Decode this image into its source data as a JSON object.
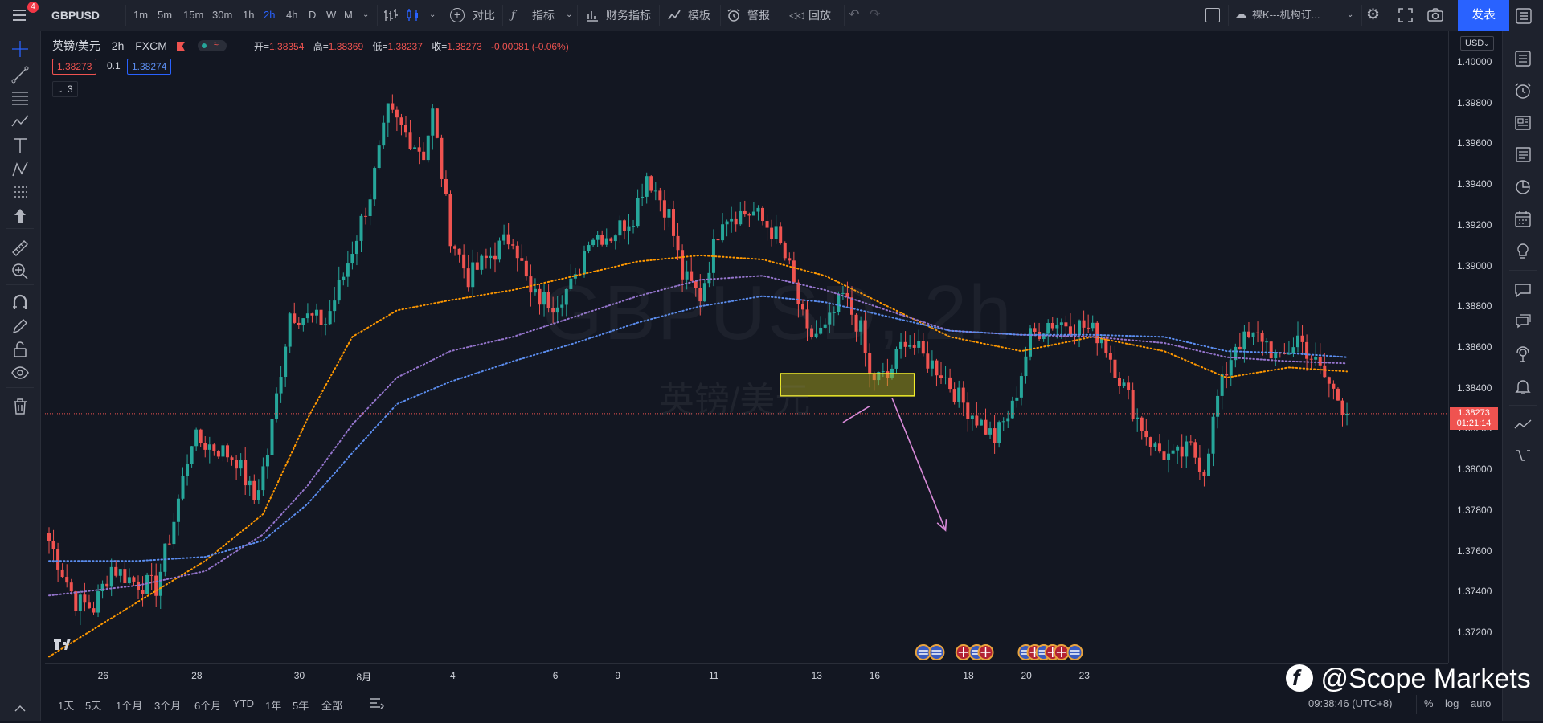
{
  "topbar": {
    "symbol": "GBPUSD",
    "intervals": [
      "1m",
      "5m",
      "15m",
      "30m",
      "1h",
      "2h",
      "4h",
      "D",
      "W",
      "M"
    ],
    "active_interval": "2h",
    "compare_label": "对比",
    "indicators_label": "指标",
    "financials_label": "财务指标",
    "templates_label": "模板",
    "alerts_label": "警报",
    "replay_label": "回放",
    "layout_name": "裸K---机构订...",
    "publish_label": "发表",
    "notification_count": "4"
  },
  "legend": {
    "pair": "英镑/美元",
    "interval": "2h",
    "source": "FXCM",
    "open_label": "开=",
    "open": "1.38354",
    "high_label": "高=",
    "high": "1.38369",
    "low_label": "低=",
    "low": "1.38237",
    "close_label": "收=",
    "close": "1.38273",
    "change": "-0.00081 (-0.06%)",
    "bid": "1.38273",
    "spread": "0.1",
    "ask": "1.38274",
    "collapsed_indicators": "3"
  },
  "watermark": {
    "line1": "GBPUSD, 2h",
    "line2": "英镑/美元"
  },
  "price_axis": {
    "currency": "USD",
    "ticks": [
      "1.40000",
      "1.39800",
      "1.39600",
      "1.39400",
      "1.39200",
      "1.39000",
      "1.38800",
      "1.38600",
      "1.38400",
      "1.38200",
      "1.38000",
      "1.37800",
      "1.37600",
      "1.37400",
      "1.37200"
    ],
    "current_price": "1.38273",
    "countdown": "01:21:14"
  },
  "time_axis": {
    "labels": [
      "26",
      "28",
      "30",
      "8月",
      "4",
      "6",
      "9",
      "11",
      "13",
      "16",
      "18",
      "20",
      "23"
    ]
  },
  "bottombar": {
    "ranges": [
      "1天",
      "5天",
      "1个月",
      "3个月",
      "6个月",
      "YTD",
      "1年",
      "5年",
      "全部"
    ],
    "clock": "09:38:46 (UTC+8)",
    "percent_label": "%",
    "log_label": "log",
    "auto_label": "auto"
  },
  "brand": {
    "text": "@Scope Markets"
  },
  "colors": {
    "up": "#26a69a",
    "down": "#ef5350",
    "orange_ma": "#ff9800",
    "purple_ma": "#9575cd",
    "blue_ma": "#5b8def",
    "zone": "#b5b21a",
    "arrow": "#d88ad8",
    "accent": "#2962ff"
  },
  "chart_data": {
    "type": "candlestick",
    "symbol": "GBPUSD",
    "interval": "2h",
    "y_range": [
      1.3705,
      1.4015
    ],
    "price_line": 1.38273,
    "zone": {
      "price_top": 1.3847,
      "price_bottom": 1.3836,
      "start_index": 164,
      "end_index": 194
    },
    "arrow": {
      "from_index": 189,
      "from_price": 1.3835,
      "to_index": 201,
      "to_price": 1.377
    },
    "small_tick": {
      "from_index": 178,
      "from_price": 1.3823,
      "to_index": 184,
      "to_price": 1.3831
    },
    "key_points": [
      [
        0,
        1.3765
      ],
      [
        6,
        1.3735
      ],
      [
        10,
        1.3732
      ],
      [
        14,
        1.3752
      ],
      [
        19,
        1.3745
      ],
      [
        24,
        1.3742
      ],
      [
        28,
        1.3775
      ],
      [
        32,
        1.3815
      ],
      [
        38,
        1.381
      ],
      [
        42,
        1.3805
      ],
      [
        46,
        1.3785
      ],
      [
        49,
        1.3808
      ],
      [
        54,
        1.3877
      ],
      [
        62,
        1.3872
      ],
      [
        66,
        1.3895
      ],
      [
        72,
        1.3935
      ],
      [
        76,
        1.3975
      ],
      [
        84,
        1.3955
      ],
      [
        86,
        1.3975
      ],
      [
        90,
        1.3915
      ],
      [
        94,
        1.3894
      ],
      [
        99,
        1.3905
      ],
      [
        104,
        1.3915
      ],
      [
        108,
        1.3885
      ],
      [
        113,
        1.3882
      ],
      [
        118,
        1.3892
      ],
      [
        121,
        1.3915
      ],
      [
        126,
        1.3915
      ],
      [
        131,
        1.3925
      ],
      [
        134,
        1.3945
      ],
      [
        139,
        1.3925
      ],
      [
        142,
        1.3895
      ],
      [
        146,
        1.3885
      ],
      [
        151,
        1.3925
      ],
      [
        158,
        1.3926
      ],
      [
        163,
        1.3915
      ],
      [
        166,
        1.3898
      ],
      [
        170,
        1.3865
      ],
      [
        174,
        1.3868
      ],
      [
        178,
        1.3885
      ],
      [
        182,
        1.3868
      ],
      [
        184,
        1.3845
      ],
      [
        188,
        1.3845
      ],
      [
        192,
        1.3865
      ],
      [
        196,
        1.3855
      ],
      [
        200,
        1.3848
      ],
      [
        204,
        1.3835
      ],
      [
        208,
        1.3825
      ],
      [
        212,
        1.3815
      ],
      [
        216,
        1.383
      ],
      [
        220,
        1.3865
      ],
      [
        224,
        1.3872
      ],
      [
        228,
        1.3872
      ],
      [
        232,
        1.387
      ],
      [
        236,
        1.3865
      ],
      [
        240,
        1.3845
      ],
      [
        244,
        1.3825
      ],
      [
        248,
        1.381
      ],
      [
        252,
        1.3805
      ],
      [
        256,
        1.381
      ],
      [
        259,
        1.38
      ],
      [
        262,
        1.3835
      ],
      [
        266,
        1.3862
      ],
      [
        272,
        1.3865
      ],
      [
        276,
        1.3852
      ],
      [
        280,
        1.3865
      ],
      [
        283,
        1.3855
      ],
      [
        286,
        1.3845
      ],
      [
        289,
        1.3835
      ],
      [
        291,
        1.3827
      ]
    ],
    "ma_series": [
      {
        "key": "orange",
        "points": [
          [
            0,
            1.3708
          ],
          [
            20,
            1.3735
          ],
          [
            35,
            1.3755
          ],
          [
            48,
            1.3778
          ],
          [
            58,
            1.3825
          ],
          [
            68,
            1.3865
          ],
          [
            78,
            1.3878
          ],
          [
            90,
            1.3883
          ],
          [
            104,
            1.3888
          ],
          [
            118,
            1.3895
          ],
          [
            132,
            1.3902
          ],
          [
            146,
            1.3905
          ],
          [
            160,
            1.3903
          ],
          [
            174,
            1.3895
          ],
          [
            188,
            1.388
          ],
          [
            202,
            1.3865
          ],
          [
            218,
            1.3858
          ],
          [
            234,
            1.3865
          ],
          [
            250,
            1.3858
          ],
          [
            264,
            1.3845
          ],
          [
            278,
            1.385
          ],
          [
            291,
            1.3848
          ]
        ]
      },
      {
        "key": "purple",
        "points": [
          [
            0,
            1.3738
          ],
          [
            20,
            1.3743
          ],
          [
            35,
            1.375
          ],
          [
            48,
            1.3768
          ],
          [
            58,
            1.3792
          ],
          [
            68,
            1.3822
          ],
          [
            78,
            1.3845
          ],
          [
            90,
            1.3858
          ],
          [
            104,
            1.3865
          ],
          [
            118,
            1.3875
          ],
          [
            132,
            1.3885
          ],
          [
            146,
            1.3893
          ],
          [
            160,
            1.3895
          ],
          [
            174,
            1.3888
          ],
          [
            188,
            1.3878
          ],
          [
            202,
            1.3868
          ],
          [
            218,
            1.3866
          ],
          [
            234,
            1.3865
          ],
          [
            250,
            1.3862
          ],
          [
            264,
            1.3855
          ],
          [
            278,
            1.3853
          ],
          [
            291,
            1.3852
          ]
        ]
      },
      {
        "key": "blue",
        "points": [
          [
            0,
            1.3755
          ],
          [
            20,
            1.3755
          ],
          [
            35,
            1.3757
          ],
          [
            48,
            1.3765
          ],
          [
            58,
            1.3783
          ],
          [
            68,
            1.3808
          ],
          [
            78,
            1.3832
          ],
          [
            90,
            1.3843
          ],
          [
            104,
            1.3853
          ],
          [
            118,
            1.3862
          ],
          [
            132,
            1.3872
          ],
          [
            146,
            1.388
          ],
          [
            160,
            1.3885
          ],
          [
            174,
            1.3882
          ],
          [
            188,
            1.3875
          ],
          [
            202,
            1.3868
          ],
          [
            218,
            1.3866
          ],
          [
            234,
            1.3866
          ],
          [
            250,
            1.3865
          ],
          [
            264,
            1.3858
          ],
          [
            278,
            1.3857
          ],
          [
            291,
            1.3855
          ]
        ]
      }
    ],
    "event_markers": [
      {
        "flag": "us",
        "index": 196
      },
      {
        "flag": "us",
        "index": 199
      },
      {
        "flag": "uk",
        "index": 205
      },
      {
        "flag": "us",
        "index": 208
      },
      {
        "flag": "uk",
        "index": 210
      },
      {
        "flag": "us",
        "index": 219
      },
      {
        "flag": "uk",
        "index": 221
      },
      {
        "flag": "us",
        "index": 223
      },
      {
        "flag": "uk",
        "index": 225
      },
      {
        "flag": "uk",
        "index": 227
      },
      {
        "flag": "us",
        "index": 230
      }
    ]
  }
}
